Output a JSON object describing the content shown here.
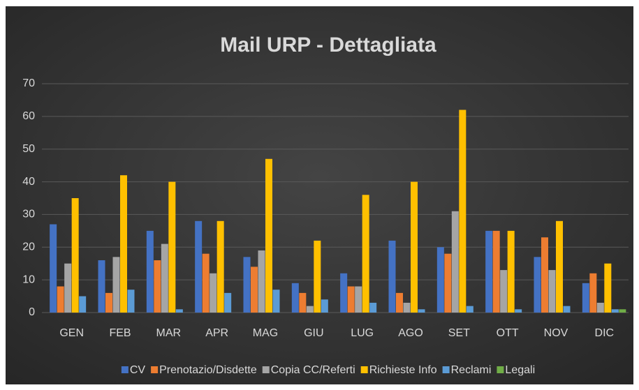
{
  "chart_data": {
    "type": "bar",
    "title": "Mail URP - Dettagliata",
    "categories": [
      "GEN",
      "FEB",
      "MAR",
      "APR",
      "MAG",
      "GIU",
      "LUG",
      "AGO",
      "SET",
      "OTT",
      "NOV",
      "DIC"
    ],
    "series": [
      {
        "name": "CV",
        "color": "#4472c4",
        "values": [
          27,
          16,
          25,
          28,
          17,
          9,
          12,
          22,
          20,
          25,
          17,
          9
        ]
      },
      {
        "name": "Prenotazio/Disdette",
        "color": "#ed7d31",
        "values": [
          8,
          6,
          16,
          18,
          14,
          6,
          8,
          6,
          18,
          25,
          23,
          12
        ]
      },
      {
        "name": "Copia CC/Referti",
        "color": "#a5a5a5",
        "values": [
          15,
          17,
          21,
          12,
          19,
          2,
          8,
          3,
          31,
          13,
          13,
          3
        ]
      },
      {
        "name": "Richieste Info",
        "color": "#ffc000",
        "values": [
          35,
          42,
          40,
          28,
          47,
          22,
          36,
          40,
          62,
          25,
          28,
          15
        ]
      },
      {
        "name": "Reclami",
        "color": "#5b9bd5",
        "values": [
          5,
          7,
          1,
          6,
          7,
          4,
          3,
          1,
          2,
          1,
          2,
          1
        ]
      },
      {
        "name": "Legali",
        "color": "#70ad47",
        "values": [
          0,
          0,
          0,
          0,
          0,
          0,
          0,
          0,
          0,
          0,
          0,
          1
        ]
      }
    ],
    "ylim": [
      0,
      70
    ],
    "yticks": [
      0,
      10,
      20,
      30,
      40,
      50,
      60,
      70
    ],
    "grid": true,
    "legend": "bottom"
  }
}
